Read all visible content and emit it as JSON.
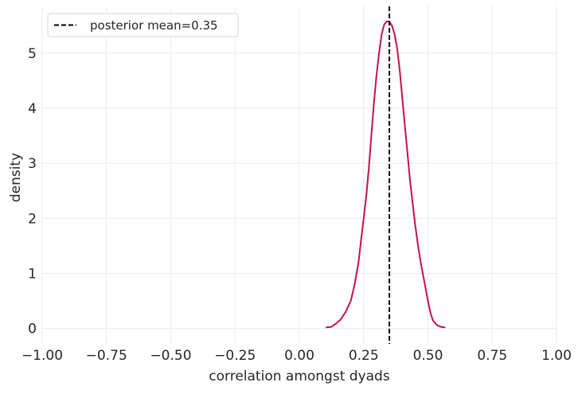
{
  "chart_data": {
    "type": "line",
    "xlabel": "correlation amongst dyads",
    "ylabel": "density",
    "xlim": [
      -1.0,
      1.0
    ],
    "ylim": [
      -0.28,
      5.85
    ],
    "grid": true,
    "legend_placement": "top-left",
    "x_ticks": [
      -1.0,
      -0.75,
      -0.5,
      -0.25,
      0.0,
      0.25,
      0.5,
      0.75,
      1.0
    ],
    "x_tick_labels": [
      "−1.00",
      "−0.75",
      "−0.50",
      "−0.25",
      "0.00",
      "0.25",
      "0.50",
      "0.75",
      "1.00"
    ],
    "y_ticks": [
      0,
      1,
      2,
      3,
      4,
      5
    ],
    "y_tick_labels": [
      "0",
      "1",
      "2",
      "3",
      "4",
      "5"
    ],
    "series": [
      {
        "type": "line",
        "color": "#c8104b",
        "x": [
          0.105,
          0.125,
          0.14,
          0.16,
          0.18,
          0.2,
          0.215,
          0.23,
          0.24,
          0.25,
          0.26,
          0.27,
          0.28,
          0.29,
          0.3,
          0.31,
          0.32,
          0.33,
          0.34,
          0.35,
          0.36,
          0.37,
          0.38,
          0.39,
          0.4,
          0.41,
          0.42,
          0.43,
          0.44,
          0.45,
          0.46,
          0.47,
          0.48,
          0.49,
          0.5,
          0.51,
          0.52,
          0.535,
          0.55,
          0.565
        ],
        "y": [
          0.02,
          0.03,
          0.08,
          0.16,
          0.3,
          0.5,
          0.8,
          1.2,
          1.6,
          2.0,
          2.4,
          2.9,
          3.5,
          4.1,
          4.6,
          5.0,
          5.35,
          5.52,
          5.58,
          5.57,
          5.5,
          5.35,
          5.1,
          4.7,
          4.2,
          3.7,
          3.2,
          2.7,
          2.3,
          1.9,
          1.55,
          1.25,
          1.0,
          0.75,
          0.5,
          0.28,
          0.14,
          0.06,
          0.03,
          0.02
        ]
      }
    ],
    "reference_lines": [
      {
        "orientation": "vertical",
        "x": 0.35,
        "style": "dashed",
        "color": "#000000",
        "label": "posterior mean=0.35"
      }
    ]
  }
}
